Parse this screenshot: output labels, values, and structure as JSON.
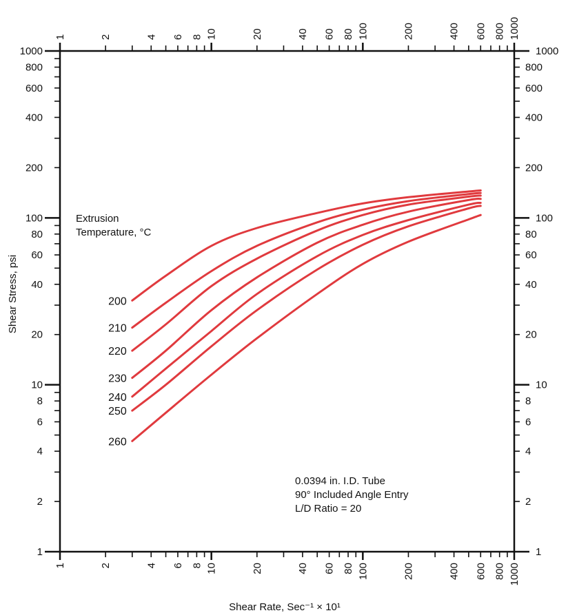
{
  "chart_data": {
    "type": "line",
    "title": "",
    "xlabel": "Shear Rate, Sec⁻¹ × 10¹",
    "ylabel": "Shear Stress, psi",
    "x_scale": "log",
    "y_scale": "log",
    "xlim": [
      1,
      1000
    ],
    "ylim": [
      1,
      1000
    ],
    "x_ticks": [
      1,
      2,
      3,
      4,
      5,
      6,
      7,
      8,
      9,
      10,
      20,
      30,
      40,
      50,
      60,
      70,
      80,
      90,
      100,
      200,
      300,
      400,
      500,
      600,
      700,
      800,
      900,
      1000
    ],
    "x_tick_labels": [
      {
        "value": 1,
        "label": "1"
      },
      {
        "value": 2,
        "label": "2"
      },
      {
        "value": 4,
        "label": "4"
      },
      {
        "value": 6,
        "label": "6"
      },
      {
        "value": 8,
        "label": "8"
      },
      {
        "value": 10,
        "label": "10"
      },
      {
        "value": 20,
        "label": "20"
      },
      {
        "value": 40,
        "label": "40"
      },
      {
        "value": 60,
        "label": "60"
      },
      {
        "value": 80,
        "label": "80"
      },
      {
        "value": 100,
        "label": "100"
      },
      {
        "value": 200,
        "label": "200"
      },
      {
        "value": 400,
        "label": "400"
      },
      {
        "value": 600,
        "label": "600"
      },
      {
        "value": 800,
        "label": "800"
      },
      {
        "value": 1000,
        "label": "1000"
      }
    ],
    "y_ticks": [
      1,
      2,
      3,
      4,
      5,
      6,
      7,
      8,
      9,
      10,
      20,
      30,
      40,
      50,
      60,
      70,
      80,
      90,
      100,
      200,
      300,
      400,
      500,
      600,
      700,
      800,
      900,
      1000
    ],
    "y_tick_labels": [
      {
        "value": 1,
        "label": "1"
      },
      {
        "value": 2,
        "label": "2"
      },
      {
        "value": 4,
        "label": "4"
      },
      {
        "value": 6,
        "label": "6"
      },
      {
        "value": 8,
        "label": "8"
      },
      {
        "value": 10,
        "label": "10"
      },
      {
        "value": 20,
        "label": "20"
      },
      {
        "value": 40,
        "label": "40"
      },
      {
        "value": 60,
        "label": "60"
      },
      {
        "value": 80,
        "label": "80"
      },
      {
        "value": 100,
        "label": "100"
      },
      {
        "value": 200,
        "label": "200"
      },
      {
        "value": 400,
        "label": "400"
      },
      {
        "value": 600,
        "label": "600"
      },
      {
        "value": 800,
        "label": "800"
      },
      {
        "value": 1000,
        "label": "1000"
      }
    ],
    "grid": false,
    "line_color": "#e03a3e",
    "series_legend_title": "Extrusion\nTemperature, °C",
    "annotation_lines": [
      "0.0394 in. I.D. Tube",
      "90° Included Angle Entry",
      "L/D Ratio = 20"
    ],
    "series": [
      {
        "name": "200",
        "x": [
          3,
          5,
          10,
          20,
          50,
          100,
          200,
          500,
          600
        ],
        "y": [
          32,
          45,
          68,
          87,
          107,
          122,
          133,
          144,
          146
        ]
      },
      {
        "name": "210",
        "x": [
          3,
          5,
          10,
          20,
          50,
          100,
          200,
          500,
          600
        ],
        "y": [
          22,
          31,
          48,
          68,
          94,
          112,
          126,
          139,
          141
        ]
      },
      {
        "name": "220",
        "x": [
          3,
          5,
          10,
          20,
          50,
          100,
          200,
          500,
          600
        ],
        "y": [
          16,
          23,
          39,
          57,
          84,
          104,
          120,
          134,
          136
        ]
      },
      {
        "name": "230",
        "x": [
          3,
          5,
          10,
          20,
          50,
          100,
          200,
          500,
          600
        ],
        "y": [
          11,
          16,
          28,
          44,
          71,
          91,
          109,
          128,
          130
        ]
      },
      {
        "name": "240",
        "x": [
          3,
          5,
          10,
          20,
          50,
          100,
          200,
          500,
          600
        ],
        "y": [
          8.5,
          12.5,
          21,
          35,
          59,
          79,
          97,
          120,
          123
        ]
      },
      {
        "name": "250",
        "x": [
          3,
          5,
          10,
          20,
          50,
          100,
          200,
          500,
          600
        ],
        "y": [
          7,
          10,
          17,
          28,
          49,
          69,
          89,
          114,
          118
        ]
      },
      {
        "name": "260",
        "x": [
          3,
          5,
          10,
          20,
          50,
          100,
          200,
          500,
          600
        ],
        "y": [
          4.6,
          6.8,
          11.5,
          19,
          35,
          53,
          72,
          98,
          104
        ]
      }
    ]
  }
}
